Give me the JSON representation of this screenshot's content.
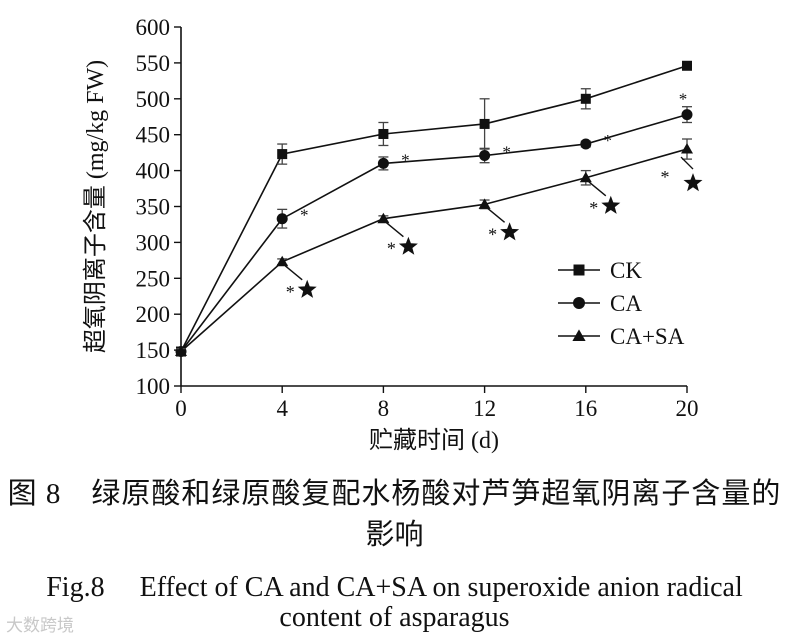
{
  "chart_data": {
    "type": "line",
    "xlabel": "贮藏时间 (d)",
    "ylabel": "超氧阴离子含量 (mg/kg FW)",
    "xlim": [
      0,
      20
    ],
    "ylim": [
      100,
      600
    ],
    "x_ticks": [
      0,
      4,
      8,
      12,
      16,
      20
    ],
    "y_ticks": [
      100,
      150,
      200,
      250,
      300,
      350,
      400,
      450,
      500,
      550,
      600
    ],
    "grid": false,
    "legend_position": "right",
    "x": [
      0,
      4,
      8,
      12,
      16,
      20
    ],
    "series": [
      {
        "name": "CK",
        "marker": "square",
        "values": [
          148,
          423,
          451,
          465,
          500,
          546
        ],
        "errors": [
          4,
          14,
          16,
          35,
          14,
          4
        ]
      },
      {
        "name": "CA",
        "marker": "circle",
        "values": [
          148,
          333,
          410,
          421,
          437,
          478
        ],
        "errors": [
          4,
          13,
          9,
          10,
          4,
          11
        ],
        "annotations": [
          "",
          "*",
          "*",
          "*",
          "*",
          "*"
        ]
      },
      {
        "name": "CA+SA",
        "marker": "triangle",
        "values": [
          148,
          273,
          333,
          353,
          390,
          430
        ],
        "errors": [
          4,
          4,
          4,
          6,
          10,
          14
        ],
        "annotations": [
          "",
          "*★",
          "*★",
          "*★",
          "*★",
          "*★"
        ]
      }
    ]
  },
  "caption": {
    "cn_line1": "图 8　绿原酸和绿原酸复配水杨酸对芦笋超氧阴离子含量的",
    "cn_line2": "影响",
    "en_line1": "Fig.8　 Effect of CA and CA+SA on superoxide anion radical",
    "en_line2": "content of asparagus"
  },
  "watermark": "大数跨境"
}
